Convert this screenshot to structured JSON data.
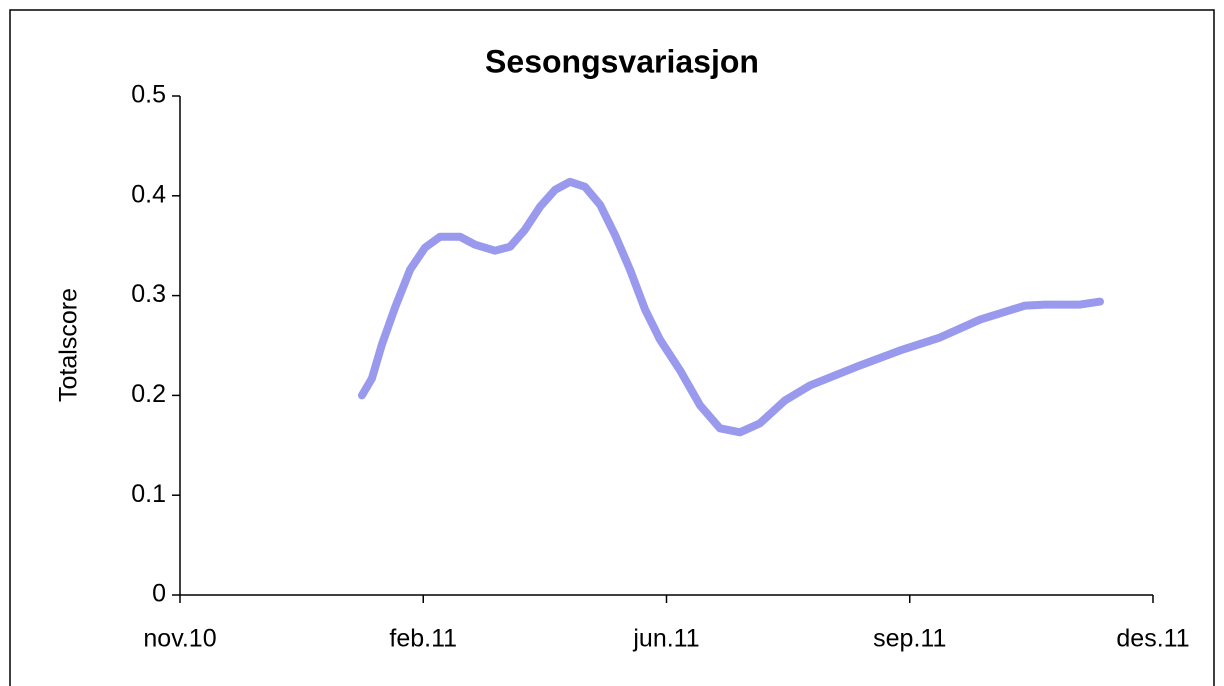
{
  "chart_data": {
    "type": "line",
    "title": "Sesongsvariasjon",
    "y_label": "Totalscore",
    "x": [
      0.748,
      0.789,
      0.83,
      0.884,
      0.946,
      1.007,
      1.069,
      1.151,
      1.213,
      1.295,
      1.357,
      1.418,
      1.48,
      1.542,
      1.603,
      1.665,
      1.727,
      1.788,
      1.85,
      1.912,
      1.973,
      2.056,
      2.138,
      2.22,
      2.302,
      2.384,
      2.487,
      2.59,
      2.672,
      2.795,
      2.96,
      3.124,
      3.289,
      3.474,
      3.556,
      3.7,
      3.782
    ],
    "series": [
      {
        "color": "#9999ee",
        "values": [
          0.2,
          0.217,
          0.251,
          0.288,
          0.326,
          0.348,
          0.359,
          0.359,
          0.351,
          0.345,
          0.349,
          0.366,
          0.389,
          0.406,
          0.414,
          0.409,
          0.391,
          0.361,
          0.326,
          0.286,
          0.256,
          0.225,
          0.19,
          0.167,
          0.163,
          0.172,
          0.195,
          0.21,
          0.218,
          0.23,
          0.245,
          0.258,
          0.276,
          0.29,
          0.291,
          0.291,
          0.294
        ]
      }
    ],
    "xlim": [
      0,
      4
    ],
    "xticks": [
      {
        "value": 0,
        "label": "nov.10"
      },
      {
        "value": 1,
        "label": "feb.11"
      },
      {
        "value": 2,
        "label": "jun.11"
      },
      {
        "value": 3,
        "label": "sep.11"
      },
      {
        "value": 4,
        "label": "des.11"
      }
    ],
    "ylim": [
      0,
      0.5
    ],
    "yticks": [
      0,
      0.1,
      0.2,
      0.3,
      0.4,
      0.5
    ],
    "grid": false
  }
}
